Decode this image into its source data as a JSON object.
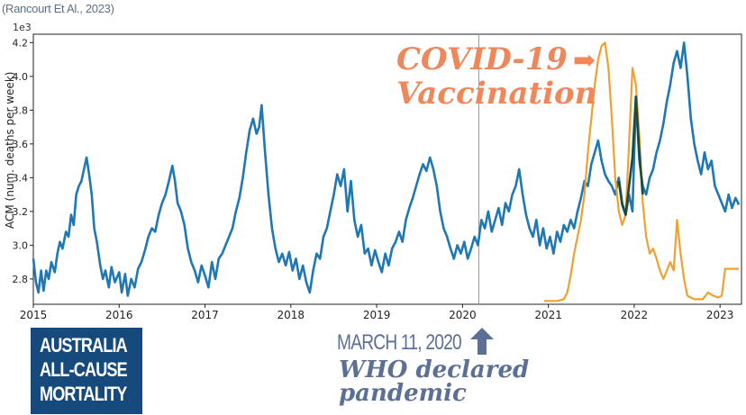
{
  "source": "(Rancourt Et Al., 2023)",
  "y_exponent": "1e3",
  "annotations": {
    "vaccination_line1": "COVID-19",
    "vaccination_arrow": "➡",
    "vaccination_line2": "Vaccination",
    "badge": [
      "AUSTRALIA",
      "ALL-CAUSE",
      "MORTALITY"
    ],
    "march_date": "MARCH 11, 2020",
    "who_line1": "WHO declared",
    "who_line2": "pandemic"
  },
  "colors": {
    "acm": "#1f77b4",
    "vaccination": "#f0a030",
    "overlap": "#1f4a3a",
    "vline": "#999999"
  },
  "chart_data": {
    "type": "line",
    "ylabel": "ACM (num. deaths per week)",
    "xlim": [
      2015.0,
      2023.25
    ],
    "ylim": [
      2.65,
      4.25
    ],
    "y_ticks": [
      "2.8",
      "3.0",
      "3.2",
      "3.4",
      "3.6",
      "3.8",
      "4.0",
      "4.2"
    ],
    "x_ticks": [
      "2015",
      "2016",
      "2017",
      "2018",
      "2019",
      "2020",
      "2021",
      "2022",
      "2023"
    ],
    "vline_x": 2020.19,
    "series": [
      {
        "id": "acm",
        "points": [
          [
            2015.0,
            2.92
          ],
          [
            2015.03,
            2.78
          ],
          [
            2015.06,
            2.72
          ],
          [
            2015.09,
            2.85
          ],
          [
            2015.12,
            2.73
          ],
          [
            2015.15,
            2.85
          ],
          [
            2015.18,
            2.8
          ],
          [
            2015.21,
            2.9
          ],
          [
            2015.25,
            2.84
          ],
          [
            2015.28,
            2.95
          ],
          [
            2015.31,
            3.02
          ],
          [
            2015.34,
            2.98
          ],
          [
            2015.38,
            3.08
          ],
          [
            2015.41,
            3.05
          ],
          [
            2015.44,
            3.18
          ],
          [
            2015.47,
            3.12
          ],
          [
            2015.5,
            3.3
          ],
          [
            2015.53,
            3.35
          ],
          [
            2015.56,
            3.38
          ],
          [
            2015.59,
            3.45
          ],
          [
            2015.62,
            3.52
          ],
          [
            2015.65,
            3.42
          ],
          [
            2015.68,
            3.3
          ],
          [
            2015.71,
            3.1
          ],
          [
            2015.74,
            3.02
          ],
          [
            2015.78,
            2.88
          ],
          [
            2015.81,
            2.8
          ],
          [
            2015.84,
            2.85
          ],
          [
            2015.88,
            2.75
          ],
          [
            2015.91,
            2.87
          ],
          [
            2015.95,
            2.78
          ],
          [
            2016.0,
            2.84
          ],
          [
            2016.03,
            2.72
          ],
          [
            2016.07,
            2.83
          ],
          [
            2016.1,
            2.7
          ],
          [
            2016.14,
            2.8
          ],
          [
            2016.18,
            2.75
          ],
          [
            2016.22,
            2.86
          ],
          [
            2016.26,
            2.9
          ],
          [
            2016.3,
            2.97
          ],
          [
            2016.34,
            3.05
          ],
          [
            2016.38,
            3.1
          ],
          [
            2016.42,
            3.08
          ],
          [
            2016.46,
            3.18
          ],
          [
            2016.5,
            3.25
          ],
          [
            2016.54,
            3.3
          ],
          [
            2016.58,
            3.38
          ],
          [
            2016.62,
            3.47
          ],
          [
            2016.65,
            3.38
          ],
          [
            2016.68,
            3.25
          ],
          [
            2016.72,
            3.2
          ],
          [
            2016.76,
            3.12
          ],
          [
            2016.8,
            2.98
          ],
          [
            2016.84,
            2.9
          ],
          [
            2016.88,
            2.85
          ],
          [
            2016.92,
            2.78
          ],
          [
            2016.96,
            2.88
          ],
          [
            2017.0,
            2.82
          ],
          [
            2017.04,
            2.75
          ],
          [
            2017.08,
            2.9
          ],
          [
            2017.12,
            2.8
          ],
          [
            2017.16,
            2.92
          ],
          [
            2017.2,
            2.95
          ],
          [
            2017.24,
            3.0
          ],
          [
            2017.28,
            3.05
          ],
          [
            2017.32,
            3.1
          ],
          [
            2017.36,
            3.2
          ],
          [
            2017.4,
            3.28
          ],
          [
            2017.44,
            3.4
          ],
          [
            2017.48,
            3.55
          ],
          [
            2017.52,
            3.68
          ],
          [
            2017.56,
            3.75
          ],
          [
            2017.6,
            3.66
          ],
          [
            2017.63,
            3.7
          ],
          [
            2017.66,
            3.83
          ],
          [
            2017.7,
            3.55
          ],
          [
            2017.74,
            3.3
          ],
          [
            2017.78,
            3.1
          ],
          [
            2017.82,
            2.98
          ],
          [
            2017.86,
            2.9
          ],
          [
            2017.9,
            2.95
          ],
          [
            2017.94,
            2.88
          ],
          [
            2017.98,
            2.96
          ],
          [
            2018.02,
            2.85
          ],
          [
            2018.06,
            2.92
          ],
          [
            2018.1,
            2.8
          ],
          [
            2018.14,
            2.88
          ],
          [
            2018.18,
            2.78
          ],
          [
            2018.22,
            2.72
          ],
          [
            2018.26,
            2.85
          ],
          [
            2018.3,
            2.95
          ],
          [
            2018.34,
            2.92
          ],
          [
            2018.38,
            3.05
          ],
          [
            2018.42,
            3.1
          ],
          [
            2018.46,
            3.2
          ],
          [
            2018.5,
            3.3
          ],
          [
            2018.54,
            3.42
          ],
          [
            2018.58,
            3.35
          ],
          [
            2018.62,
            3.45
          ],
          [
            2018.66,
            3.2
          ],
          [
            2018.7,
            3.38
          ],
          [
            2018.74,
            3.15
          ],
          [
            2018.78,
            3.05
          ],
          [
            2018.82,
            3.12
          ],
          [
            2018.86,
            2.95
          ],
          [
            2018.9,
            2.98
          ],
          [
            2018.94,
            2.88
          ],
          [
            2018.98,
            2.97
          ],
          [
            2019.02,
            2.9
          ],
          [
            2019.06,
            2.84
          ],
          [
            2019.1,
            2.95
          ],
          [
            2019.14,
            2.88
          ],
          [
            2019.18,
            2.98
          ],
          [
            2019.22,
            3.02
          ],
          [
            2019.26,
            3.08
          ],
          [
            2019.3,
            3.02
          ],
          [
            2019.34,
            3.15
          ],
          [
            2019.38,
            3.22
          ],
          [
            2019.42,
            3.28
          ],
          [
            2019.46,
            3.35
          ],
          [
            2019.5,
            3.42
          ],
          [
            2019.54,
            3.48
          ],
          [
            2019.58,
            3.44
          ],
          [
            2019.62,
            3.52
          ],
          [
            2019.66,
            3.45
          ],
          [
            2019.7,
            3.35
          ],
          [
            2019.74,
            3.2
          ],
          [
            2019.78,
            3.1
          ],
          [
            2019.82,
            3.05
          ],
          [
            2019.86,
            2.98
          ],
          [
            2019.9,
            2.92
          ],
          [
            2019.94,
            3.0
          ],
          [
            2019.98,
            2.95
          ],
          [
            2020.02,
            3.02
          ],
          [
            2020.06,
            2.92
          ],
          [
            2020.1,
            2.98
          ],
          [
            2020.14,
            3.05
          ],
          [
            2020.18,
            3.0
          ],
          [
            2020.22,
            3.15
          ],
          [
            2020.26,
            3.1
          ],
          [
            2020.3,
            3.2
          ],
          [
            2020.34,
            3.08
          ],
          [
            2020.38,
            3.15
          ],
          [
            2020.42,
            3.22
          ],
          [
            2020.46,
            3.12
          ],
          [
            2020.5,
            3.25
          ],
          [
            2020.54,
            3.2
          ],
          [
            2020.58,
            3.3
          ],
          [
            2020.62,
            3.35
          ],
          [
            2020.66,
            3.45
          ],
          [
            2020.7,
            3.3
          ],
          [
            2020.74,
            3.18
          ],
          [
            2020.78,
            3.1
          ],
          [
            2020.82,
            3.05
          ],
          [
            2020.86,
            3.15
          ],
          [
            2020.9,
            3.0
          ],
          [
            2020.94,
            3.1
          ],
          [
            2020.98,
            2.98
          ],
          [
            2021.02,
            3.05
          ],
          [
            2021.06,
            2.95
          ],
          [
            2021.1,
            3.08
          ],
          [
            2021.14,
            3.02
          ],
          [
            2021.18,
            3.12
          ],
          [
            2021.22,
            3.08
          ],
          [
            2021.26,
            3.15
          ],
          [
            2021.3,
            3.1
          ],
          [
            2021.34,
            3.2
          ],
          [
            2021.38,
            3.28
          ],
          [
            2021.42,
            3.38
          ],
          [
            2021.46,
            3.35
          ],
          [
            2021.5,
            3.48
          ],
          [
            2021.54,
            3.55
          ],
          [
            2021.58,
            3.62
          ],
          [
            2021.62,
            3.5
          ],
          [
            2021.66,
            3.42
          ],
          [
            2021.7,
            3.38
          ],
          [
            2021.74,
            3.35
          ],
          [
            2021.78,
            3.3
          ],
          [
            2021.82,
            3.4
          ],
          [
            2021.86,
            3.25
          ],
          [
            2021.9,
            3.18
          ],
          [
            2021.94,
            3.3
          ],
          [
            2021.98,
            3.2
          ],
          [
            2022.02,
            3.88
          ],
          [
            2022.06,
            3.5
          ],
          [
            2022.1,
            3.35
          ],
          [
            2022.14,
            3.3
          ],
          [
            2022.18,
            3.4
          ],
          [
            2022.22,
            3.45
          ],
          [
            2022.26,
            3.55
          ],
          [
            2022.3,
            3.62
          ],
          [
            2022.34,
            3.72
          ],
          [
            2022.38,
            3.85
          ],
          [
            2022.42,
            3.95
          ],
          [
            2022.46,
            4.08
          ],
          [
            2022.5,
            4.15
          ],
          [
            2022.54,
            4.05
          ],
          [
            2022.58,
            4.2
          ],
          [
            2022.62,
            4.0
          ],
          [
            2022.66,
            3.75
          ],
          [
            2022.7,
            3.6
          ],
          [
            2022.74,
            3.5
          ],
          [
            2022.78,
            3.42
          ],
          [
            2022.82,
            3.55
          ],
          [
            2022.86,
            3.45
          ],
          [
            2022.9,
            3.5
          ],
          [
            2022.94,
            3.35
          ],
          [
            2022.98,
            3.3
          ],
          [
            2023.02,
            3.25
          ],
          [
            2023.06,
            3.2
          ],
          [
            2023.1,
            3.3
          ],
          [
            2023.14,
            3.22
          ],
          [
            2023.18,
            3.28
          ],
          [
            2023.22,
            3.24
          ]
        ]
      },
      {
        "id": "vaccination",
        "points": [
          [
            2020.95,
            2.67
          ],
          [
            2021.1,
            2.67
          ],
          [
            2021.18,
            2.68
          ],
          [
            2021.22,
            2.72
          ],
          [
            2021.26,
            2.82
          ],
          [
            2021.3,
            2.95
          ],
          [
            2021.34,
            3.05
          ],
          [
            2021.38,
            3.15
          ],
          [
            2021.42,
            3.3
          ],
          [
            2021.46,
            3.55
          ],
          [
            2021.5,
            3.75
          ],
          [
            2021.54,
            3.95
          ],
          [
            2021.58,
            4.1
          ],
          [
            2021.62,
            4.18
          ],
          [
            2021.66,
            4.2
          ],
          [
            2021.7,
            4.05
          ],
          [
            2021.74,
            3.75
          ],
          [
            2021.78,
            3.4
          ],
          [
            2021.82,
            3.2
          ],
          [
            2021.86,
            3.12
          ],
          [
            2021.9,
            3.18
          ],
          [
            2021.94,
            3.6
          ],
          [
            2021.98,
            4.05
          ],
          [
            2022.02,
            3.95
          ],
          [
            2022.06,
            3.65
          ],
          [
            2022.1,
            3.25
          ],
          [
            2022.14,
            3.05
          ],
          [
            2022.18,
            2.95
          ],
          [
            2022.22,
            2.98
          ],
          [
            2022.26,
            2.92
          ],
          [
            2022.3,
            2.85
          ],
          [
            2022.34,
            2.8
          ],
          [
            2022.38,
            2.85
          ],
          [
            2022.42,
            2.9
          ],
          [
            2022.46,
            2.85
          ],
          [
            2022.5,
            3.15
          ],
          [
            2022.54,
            2.95
          ],
          [
            2022.58,
            2.8
          ],
          [
            2022.62,
            2.7
          ],
          [
            2022.7,
            2.68
          ],
          [
            2022.8,
            2.68
          ],
          [
            2022.86,
            2.72
          ],
          [
            2022.92,
            2.7
          ],
          [
            2022.98,
            2.69
          ],
          [
            2023.02,
            2.7
          ],
          [
            2023.06,
            2.86
          ],
          [
            2023.22,
            2.86
          ]
        ]
      },
      {
        "id": "overlap",
        "points": [
          [
            2021.82,
            3.38
          ],
          [
            2021.86,
            3.24
          ],
          [
            2021.9,
            3.18
          ],
          [
            2021.94,
            3.35
          ],
          [
            2021.98,
            3.52
          ],
          [
            2022.02,
            3.88
          ],
          [
            2022.06,
            3.55
          ],
          [
            2022.1,
            3.3
          ]
        ]
      }
    ]
  }
}
